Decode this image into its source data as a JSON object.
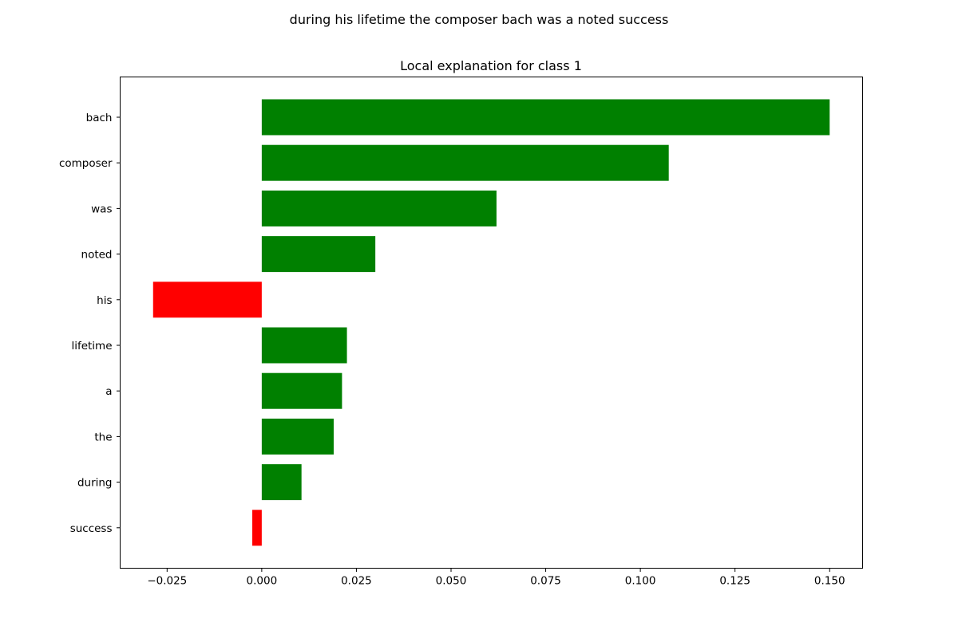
{
  "suptitle": "during his lifetime the composer bach was a noted success",
  "chart_data": {
    "type": "bar",
    "orientation": "horizontal",
    "title": "Local explanation for class 1",
    "xlabel": "",
    "ylabel": "",
    "categories": [
      "bach",
      "composer",
      "was",
      "noted",
      "his",
      "lifetime",
      "a",
      "the",
      "during",
      "success"
    ],
    "values": [
      0.15,
      0.1075,
      0.062,
      0.03,
      -0.0287,
      0.0225,
      0.0212,
      0.019,
      0.0105,
      -0.0025
    ],
    "xlim": [
      -0.0374,
      0.1587
    ],
    "xticks": [
      -0.025,
      0.0,
      0.025,
      0.05,
      0.075,
      0.1,
      0.125,
      0.15
    ],
    "xtick_labels": [
      "−0.025",
      "0.000",
      "0.025",
      "0.050",
      "0.075",
      "0.100",
      "0.125",
      "0.150"
    ],
    "grid": false,
    "colors": {
      "positive": "#008000",
      "negative": "#ff0000"
    }
  }
}
